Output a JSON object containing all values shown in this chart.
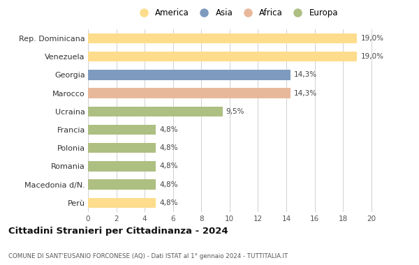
{
  "categories": [
    "Perù",
    "Macedonia d/N.",
    "Romania",
    "Polonia",
    "Francia",
    "Ucraina",
    "Marocco",
    "Georgia",
    "Venezuela",
    "Rep. Dominicana"
  ],
  "values": [
    4.8,
    4.8,
    4.8,
    4.8,
    4.8,
    9.5,
    14.3,
    14.3,
    19.0,
    19.0
  ],
  "labels": [
    "4,8%",
    "4,8%",
    "4,8%",
    "4,8%",
    "4,8%",
    "9,5%",
    "14,3%",
    "14,3%",
    "19,0%",
    "19,0%"
  ],
  "colors": [
    "#FDDD8C",
    "#AEBF82",
    "#AEBF82",
    "#AEBF82",
    "#AEBF82",
    "#AEBF82",
    "#E8B89A",
    "#7E9BBF",
    "#FDDD8C",
    "#FDDD8C"
  ],
  "legend_labels": [
    "America",
    "Asia",
    "Africa",
    "Europa"
  ],
  "legend_colors": [
    "#FDDD8C",
    "#7E9BBF",
    "#E8B89A",
    "#AEBF82"
  ],
  "title": "Cittadini Stranieri per Cittadinanza - 2024",
  "subtitle": "COMUNE DI SANT'EUSANIO FORCONESE (AQ) - Dati ISTAT al 1° gennaio 2024 - TUTTITALIA.IT",
  "xlim": [
    0,
    21
  ],
  "xticks": [
    0,
    2,
    4,
    6,
    8,
    10,
    12,
    14,
    16,
    18,
    20
  ],
  "background_color": "#ffffff",
  "grid_color": "#d0d0d0",
  "bar_height": 0.55
}
